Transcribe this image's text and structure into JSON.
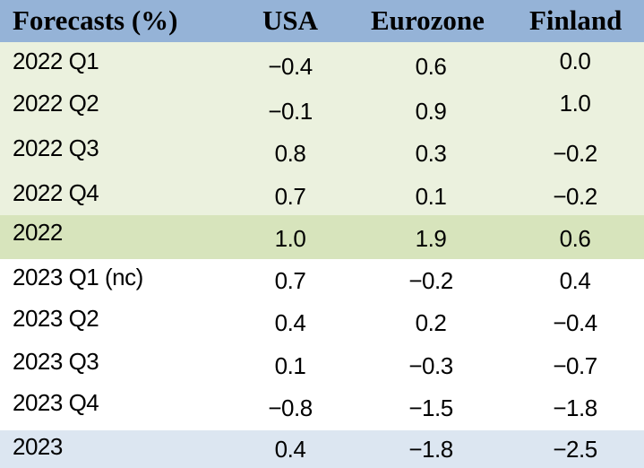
{
  "header": {
    "label": "Forecasts (%)",
    "columns": [
      "USA",
      "Eurozone",
      "Finland"
    ]
  },
  "colors": {
    "header_bg": "#95b3d7",
    "quarter_2022_bg": "#ebf1de",
    "annual_2022_bg": "#d7e4bc",
    "annual_2023_bg": "#dce6f1"
  },
  "rows": [
    {
      "label": "2022 Q1",
      "usa": "-0.4",
      "eurozone": "0.6",
      "finland": "0.0"
    },
    {
      "label": "2022 Q2",
      "usa": "-0.1",
      "eurozone": "0.9",
      "finland": "1.0"
    },
    {
      "label": "2022 Q3",
      "usa": "0.8",
      "eurozone": "0.3",
      "finland": "-0.2"
    },
    {
      "label": "2022 Q4",
      "usa": "0.7",
      "eurozone": "0.1",
      "finland": "-0.2"
    },
    {
      "label": "2022",
      "usa": "1.0",
      "eurozone": "1.9",
      "finland": "0.6"
    },
    {
      "label": "2023 Q1 (nc)",
      "usa": "0.7",
      "eurozone": "-0.2",
      "finland": "0.4"
    },
    {
      "label": "2023 Q2",
      "usa": "0.4",
      "eurozone": "0.2",
      "finland": "-0.4"
    },
    {
      "label": "2023 Q3",
      "usa": "0.1",
      "eurozone": "-0.3",
      "finland": "-0.7"
    },
    {
      "label": "2023 Q4",
      "usa": "-0.8",
      "eurozone": "-1.5",
      "finland": "-1.8"
    },
    {
      "label": "2023",
      "usa": "0.4",
      "eurozone": "-1.8",
      "finland": "-2.5"
    }
  ],
  "chart_data": {
    "type": "table",
    "columns": [
      "Forecasts (%)",
      "USA",
      "Eurozone",
      "Finland"
    ],
    "rows": [
      [
        "2022 Q1",
        -0.4,
        0.6,
        0.0
      ],
      [
        "2022 Q2",
        -0.1,
        0.9,
        1.0
      ],
      [
        "2022 Q3",
        0.8,
        0.3,
        -0.2
      ],
      [
        "2022 Q4",
        0.7,
        0.1,
        -0.2
      ],
      [
        "2022",
        1.0,
        1.9,
        0.6
      ],
      [
        "2023 Q1 (nc)",
        0.7,
        -0.2,
        0.4
      ],
      [
        "2023 Q2",
        0.4,
        0.2,
        -0.4
      ],
      [
        "2023 Q3",
        0.1,
        -0.3,
        -0.7
      ],
      [
        "2023 Q4",
        -0.8,
        -1.5,
        -1.8
      ],
      [
        "2023",
        0.4,
        -1.8,
        -2.5
      ]
    ]
  }
}
